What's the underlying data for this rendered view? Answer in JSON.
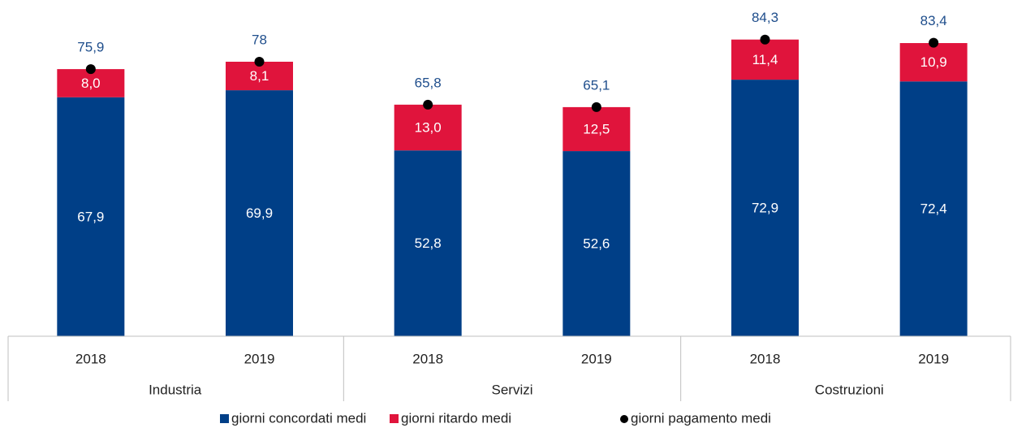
{
  "chart_data": {
    "type": "stacked_bar",
    "categories": [
      "2018",
      "2019",
      "2018",
      "2019",
      "2018",
      "2019"
    ],
    "groups": [
      "Industria",
      "Servizi",
      "Costruzioni"
    ],
    "ylim": [
      0,
      90
    ],
    "series": [
      {
        "name": "giorni concordati medi",
        "color": "#003f87",
        "values": [
          67.9,
          69.9,
          52.8,
          52.6,
          72.9,
          72.4
        ],
        "value_labels": [
          "67,9",
          "69,9",
          "52,8",
          "52,6",
          "72,9",
          "72,4"
        ]
      },
      {
        "name": "giorni ritardo medi",
        "color": "#e0143c",
        "values": [
          8.0,
          8.1,
          13.0,
          12.5,
          11.4,
          10.9
        ],
        "value_labels": [
          "8,0",
          "8,1",
          "13,0",
          "12,5",
          "11,4",
          "10,9"
        ]
      },
      {
        "name": "giorni pagamento medi",
        "type": "dot",
        "color": "#000000",
        "values": [
          75.9,
          78,
          65.8,
          65.1,
          84.3,
          83.4
        ],
        "value_labels": [
          "75,9",
          "78",
          "65,8",
          "65,1",
          "84,3",
          "83,4"
        ]
      }
    ]
  }
}
